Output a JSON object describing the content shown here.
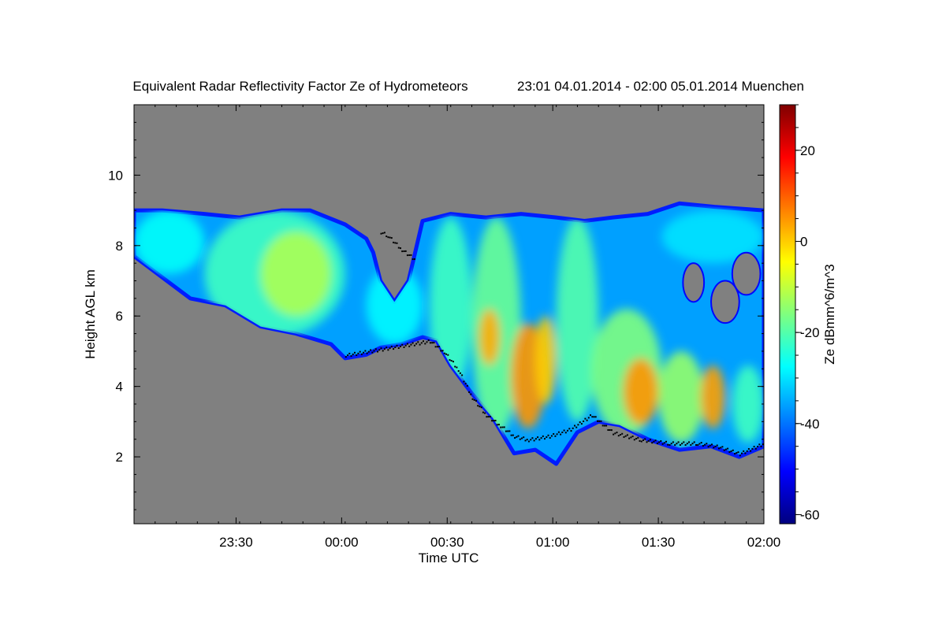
{
  "chart_data": {
    "type": "heatmap",
    "title": "Equivalent Radar Reflectivity Factor Ze of Hydrometeors",
    "subtitle": "23:01 04.01.2014 - 02:00 05.01.2014 Muenchen",
    "xlabel": "Time UTC",
    "ylabel": "Height AGL km",
    "colorbar_label": "Ze dBmm^6/m^3",
    "x_range_minutes": [
      0,
      179
    ],
    "x_tick_minutes": [
      29,
      59,
      89,
      119,
      149,
      179
    ],
    "x_tick_labels": [
      "23:30",
      "00:00",
      "00:30",
      "01:00",
      "01:30",
      "02:00"
    ],
    "ylim": [
      0.1,
      12
    ],
    "y_ticks": [
      2,
      4,
      6,
      8,
      10
    ],
    "y_tick_labels": [
      "2",
      "4",
      "6",
      "8",
      "10"
    ],
    "colorbar_range": [
      -62,
      30
    ],
    "colorbar_ticks": [
      20,
      0,
      -20,
      -40,
      -60
    ],
    "colorbar_tick_labels": [
      "20",
      "0",
      "-20",
      "-40",
      "-60"
    ],
    "background_color": "#808080",
    "colormap": [
      "#00007f",
      "#0000ff",
      "#007fff",
      "#00ffff",
      "#7fff7f",
      "#ffff00",
      "#ff7f00",
      "#ff0000",
      "#7f0000"
    ],
    "echo_top_km": [
      {
        "t": 0,
        "h": 9.0
      },
      {
        "t": 8,
        "h": 9.0
      },
      {
        "t": 20,
        "h": 8.9
      },
      {
        "t": 30,
        "h": 8.8
      },
      {
        "t": 42,
        "h": 9.0
      },
      {
        "t": 50,
        "h": 9.0
      },
      {
        "t": 60,
        "h": 8.6
      },
      {
        "t": 66,
        "h": 8.2
      },
      {
        "t": 68,
        "h": 7.8
      },
      {
        "t": 70,
        "h": 7.0
      },
      {
        "t": 74,
        "h": 6.4
      },
      {
        "t": 78,
        "h": 7.0
      },
      {
        "t": 82,
        "h": 8.7
      },
      {
        "t": 90,
        "h": 8.9
      },
      {
        "t": 100,
        "h": 8.8
      },
      {
        "t": 110,
        "h": 8.9
      },
      {
        "t": 120,
        "h": 8.8
      },
      {
        "t": 128,
        "h": 8.7
      },
      {
        "t": 136,
        "h": 8.8
      },
      {
        "t": 146,
        "h": 8.9
      },
      {
        "t": 155,
        "h": 9.2
      },
      {
        "t": 165,
        "h": 9.1
      },
      {
        "t": 179,
        "h": 9.0
      }
    ],
    "echo_base_km": [
      {
        "t": 179,
        "h": 2.3
      },
      {
        "t": 172,
        "h": 2.0
      },
      {
        "t": 164,
        "h": 2.3
      },
      {
        "t": 155,
        "h": 2.2
      },
      {
        "t": 146,
        "h": 2.5
      },
      {
        "t": 138,
        "h": 2.9
      },
      {
        "t": 132,
        "h": 3.0
      },
      {
        "t": 126,
        "h": 2.7
      },
      {
        "t": 120,
        "h": 1.8
      },
      {
        "t": 114,
        "h": 2.2
      },
      {
        "t": 108,
        "h": 2.1
      },
      {
        "t": 102,
        "h": 3.1
      },
      {
        "t": 96,
        "h": 3.8
      },
      {
        "t": 90,
        "h": 4.6
      },
      {
        "t": 86,
        "h": 5.3
      },
      {
        "t": 82,
        "h": 5.4
      },
      {
        "t": 76,
        "h": 5.2
      },
      {
        "t": 70,
        "h": 5.1
      },
      {
        "t": 66,
        "h": 4.9
      },
      {
        "t": 60,
        "h": 4.8
      },
      {
        "t": 56,
        "h": 5.2
      },
      {
        "t": 46,
        "h": 5.5
      },
      {
        "t": 36,
        "h": 5.7
      },
      {
        "t": 26,
        "h": 6.3
      },
      {
        "t": 16,
        "h": 6.5
      },
      {
        "t": 8,
        "h": 7.1
      },
      {
        "t": 0,
        "h": 7.7
      }
    ],
    "clear_gaps": [
      {
        "t": [
          156,
          162
        ],
        "h": [
          6.4,
          7.5
        ]
      },
      {
        "t": [
          164,
          172
        ],
        "h": [
          5.8,
          7.0
        ]
      },
      {
        "t": [
          170,
          178
        ],
        "h": [
          6.6,
          7.8
        ]
      }
    ],
    "core_regions_dbz": [
      {
        "t": [
          0,
          20
        ],
        "h": [
          7.2,
          9.0
        ],
        "ze": -27
      },
      {
        "t": [
          20,
          60
        ],
        "h": [
          5.4,
          9.0
        ],
        "ze": -22
      },
      {
        "t": [
          36,
          56
        ],
        "h": [
          6.0,
          8.4
        ],
        "ze": -12
      },
      {
        "t": [
          66,
          82
        ],
        "h": [
          5.2,
          7.4
        ],
        "ze": -28
      },
      {
        "t": [
          84,
          96
        ],
        "h": [
          3.8,
          8.8
        ],
        "ze": -22
      },
      {
        "t": [
          96,
          110
        ],
        "h": [
          2.6,
          8.8
        ],
        "ze": -18
      },
      {
        "t": [
          98,
          104
        ],
        "h": [
          4.6,
          6.2
        ],
        "ze": 3
      },
      {
        "t": [
          107,
          117
        ],
        "h": [
          2.8,
          5.8
        ],
        "ze": 5
      },
      {
        "t": [
          114,
          120
        ],
        "h": [
          3.5,
          6.0
        ],
        "ze": 0
      },
      {
        "t": [
          120,
          132
        ],
        "h": [
          3.0,
          8.8
        ],
        "ze": -20
      },
      {
        "t": [
          130,
          150
        ],
        "h": [
          2.6,
          6.2
        ],
        "ze": -16
      },
      {
        "t": [
          139,
          149
        ],
        "h": [
          2.9,
          4.8
        ],
        "ze": 5
      },
      {
        "t": [
          149,
          162
        ],
        "h": [
          2.4,
          5.0
        ],
        "ze": -14
      },
      {
        "t": [
          161,
          168
        ],
        "h": [
          2.8,
          4.6
        ],
        "ze": 4
      },
      {
        "t": [
          150,
          179
        ],
        "h": [
          7.5,
          9.0
        ],
        "ze": -30
      },
      {
        "t": [
          170,
          179
        ],
        "h": [
          2.4,
          4.6
        ],
        "ze": -22
      }
    ],
    "melting_layer_km": [
      {
        "t": 60,
        "h": 4.9
      },
      {
        "t": 66,
        "h": 5.0
      },
      {
        "t": 72,
        "h": 5.1
      },
      {
        "t": 78,
        "h": 5.2
      },
      {
        "t": 84,
        "h": 5.3
      },
      {
        "t": 88,
        "h": 5.0
      },
      {
        "t": 92,
        "h": 4.5
      },
      {
        "t": 96,
        "h": 3.7
      },
      {
        "t": 100,
        "h": 3.2
      },
      {
        "t": 104,
        "h": 2.9
      },
      {
        "t": 108,
        "h": 2.6
      },
      {
        "t": 112,
        "h": 2.5
      },
      {
        "t": 118,
        "h": 2.6
      },
      {
        "t": 124,
        "h": 2.8
      },
      {
        "t": 130,
        "h": 3.2
      },
      {
        "t": 136,
        "h": 2.7
      },
      {
        "t": 144,
        "h": 2.5
      },
      {
        "t": 152,
        "h": 2.4
      },
      {
        "t": 160,
        "h": 2.4
      },
      {
        "t": 166,
        "h": 2.3
      },
      {
        "t": 172,
        "h": 2.1
      },
      {
        "t": 179,
        "h": 2.4
      }
    ],
    "melting_layer_upper_km": [
      {
        "t": 70,
        "h": 8.4
      },
      {
        "t": 72,
        "h": 8.3
      },
      {
        "t": 76,
        "h": 7.9
      },
      {
        "t": 80,
        "h": 7.6
      }
    ]
  }
}
